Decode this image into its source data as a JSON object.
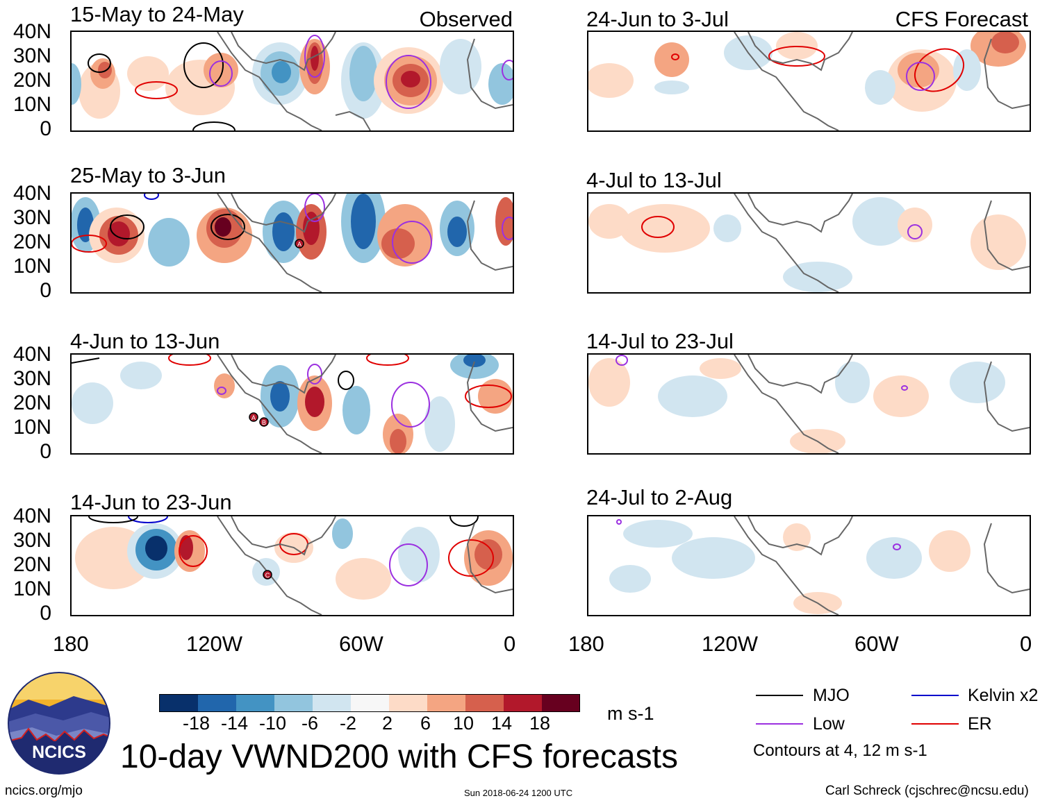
{
  "figure": {
    "title": "10-day VWND200 with CFS forecasts",
    "observed_label": "Observed",
    "forecast_label": "CFS Forecast",
    "units": "m s-1",
    "contour_note": "Contours at 4, 12 m s-1",
    "url": "ncics.org/mjo",
    "timestamp": "Sun 2018-06-24 1200 UTC",
    "author": "Carl Schreck (cjschrec@ncsu.edu)",
    "logo_text": "NCICS"
  },
  "panels": [
    {
      "title": "15-May to 24-May",
      "kind": "observed"
    },
    {
      "title": "25-May to 3-Jun",
      "kind": "observed"
    },
    {
      "title": "4-Jun to 13-Jun",
      "kind": "observed"
    },
    {
      "title": "14-Jun to 23-Jun",
      "kind": "observed"
    },
    {
      "title": "24-Jun to 3-Jul",
      "kind": "forecast"
    },
    {
      "title": "4-Jul to 13-Jul",
      "kind": "forecast"
    },
    {
      "title": "14-Jul to 23-Jul",
      "kind": "forecast"
    },
    {
      "title": "24-Jul to 2-Aug",
      "kind": "forecast"
    }
  ],
  "axes": {
    "lat_labels": [
      "40N",
      "30N",
      "20N",
      "10N",
      "0"
    ],
    "lon_labels": [
      "180",
      "120W",
      "60W",
      "0"
    ]
  },
  "colorbar": {
    "ticks": [
      "-18",
      "-14",
      "-10",
      "-6",
      "-2",
      "2",
      "6",
      "10",
      "14",
      "18"
    ],
    "colors": [
      "#08306b",
      "#2166ac",
      "#4393c3",
      "#92c5de",
      "#d1e5f0",
      "#f7f7f7",
      "#fddbc7",
      "#f4a582",
      "#d6604d",
      "#b2182b",
      "#67001f"
    ]
  },
  "legend": {
    "mjo": {
      "label": "MJO",
      "color": "#000000"
    },
    "kelvin": {
      "label": "Kelvin x2",
      "color": "#0000cc"
    },
    "low": {
      "label": "Low",
      "color": "#9b30e0"
    },
    "er": {
      "label": "ER",
      "color": "#e00000"
    }
  },
  "storm_markers": [
    "A",
    "B",
    "C"
  ]
}
